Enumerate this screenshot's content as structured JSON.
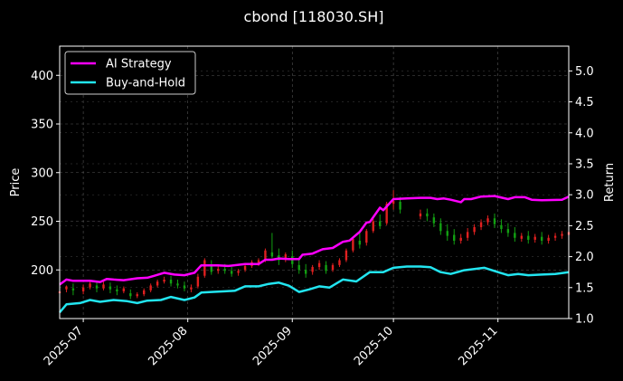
{
  "chart_data": {
    "type": "line",
    "title": "cbond [118030.SH]",
    "xlabel": "",
    "ylabel": "Price",
    "y2label": "Return",
    "x_ticks": [
      "2025-07",
      "2025-08",
      "2025-09",
      "2025-10",
      "2025-11"
    ],
    "y_ticks": [
      200,
      250,
      300,
      350,
      400
    ],
    "y2_ticks": [
      1.0,
      1.5,
      2.0,
      2.5,
      3.0,
      3.5,
      4.0,
      4.5,
      5.0
    ],
    "xlim": [
      "2025-06-24",
      "2025-11-22"
    ],
    "ylim": [
      150,
      430
    ],
    "y2lim": [
      1.0,
      5.4
    ],
    "grid": true,
    "legend_position": "upper-left",
    "colors": {
      "background": "#000000",
      "ai_strategy": "#ff00ff",
      "buy_and_hold": "#22e5f0",
      "up_candle": "#e02020",
      "down_candle": "#12a012",
      "grid": "#555555",
      "text": "#ffffff"
    },
    "series": [
      {
        "name": "AI Strategy",
        "axis": "right",
        "dates": [
          "2025-06-24",
          "2025-06-26",
          "2025-06-28",
          "2025-07-03",
          "2025-07-06",
          "2025-07-08",
          "2025-07-10",
          "2025-07-13",
          "2025-07-17",
          "2025-07-20",
          "2025-07-22",
          "2025-07-25",
          "2025-07-28",
          "2025-07-31",
          "2025-08-03",
          "2025-08-05",
          "2025-08-07",
          "2025-08-10",
          "2025-08-13",
          "2025-08-18",
          "2025-08-22",
          "2025-08-24",
          "2025-08-26",
          "2025-08-28",
          "2025-08-31",
          "2025-09-03",
          "2025-09-04",
          "2025-09-07",
          "2025-09-10",
          "2025-09-13",
          "2025-09-16",
          "2025-09-18",
          "2025-09-21",
          "2025-09-23",
          "2025-09-24",
          "2025-09-27",
          "2025-09-28",
          "2025-10-01",
          "2025-10-05",
          "2025-10-09",
          "2025-10-12",
          "2025-10-14",
          "2025-10-16",
          "2025-10-18",
          "2025-10-21",
          "2025-10-22",
          "2025-10-24",
          "2025-10-27",
          "2025-10-31",
          "2025-11-04",
          "2025-11-06",
          "2025-11-09",
          "2025-11-11",
          "2025-11-14",
          "2025-11-20",
          "2025-11-22"
        ],
        "values": [
          1.55,
          1.63,
          1.61,
          1.61,
          1.59,
          1.64,
          1.63,
          1.62,
          1.65,
          1.66,
          1.69,
          1.74,
          1.71,
          1.7,
          1.74,
          1.86,
          1.86,
          1.86,
          1.85,
          1.88,
          1.88,
          1.95,
          1.95,
          1.97,
          1.96,
          1.96,
          2.03,
          2.05,
          2.12,
          2.14,
          2.24,
          2.26,
          2.4,
          2.55,
          2.56,
          2.79,
          2.75,
          2.93,
          2.94,
          2.95,
          2.95,
          2.93,
          2.94,
          2.92,
          2.88,
          2.93,
          2.93,
          2.97,
          2.98,
          2.93,
          2.96,
          2.96,
          2.92,
          2.91,
          2.92,
          2.97
        ]
      },
      {
        "name": "Buy-and-Hold",
        "axis": "right",
        "dates": [
          "2025-06-24",
          "2025-06-26",
          "2025-06-30",
          "2025-07-03",
          "2025-07-06",
          "2025-07-10",
          "2025-07-14",
          "2025-07-17",
          "2025-07-20",
          "2025-07-24",
          "2025-07-27",
          "2025-07-31",
          "2025-08-03",
          "2025-08-05",
          "2025-08-08",
          "2025-08-12",
          "2025-08-15",
          "2025-08-18",
          "2025-08-22",
          "2025-08-25",
          "2025-08-28",
          "2025-08-31",
          "2025-09-03",
          "2025-09-06",
          "2025-09-09",
          "2025-09-12",
          "2025-09-16",
          "2025-09-20",
          "2025-09-24",
          "2025-09-28",
          "2025-10-01",
          "2025-10-05",
          "2025-10-09",
          "2025-10-12",
          "2025-10-15",
          "2025-10-18",
          "2025-10-22",
          "2025-10-25",
          "2025-10-28",
          "2025-11-01",
          "2025-11-04",
          "2025-11-07",
          "2025-11-10",
          "2025-11-14",
          "2025-11-18",
          "2025-11-22"
        ],
        "values": [
          1.1,
          1.23,
          1.25,
          1.3,
          1.27,
          1.3,
          1.28,
          1.25,
          1.29,
          1.3,
          1.35,
          1.3,
          1.34,
          1.42,
          1.43,
          1.44,
          1.45,
          1.52,
          1.52,
          1.56,
          1.58,
          1.53,
          1.43,
          1.47,
          1.52,
          1.5,
          1.63,
          1.6,
          1.75,
          1.75,
          1.82,
          1.84,
          1.84,
          1.83,
          1.75,
          1.72,
          1.78,
          1.8,
          1.82,
          1.75,
          1.7,
          1.72,
          1.7,
          1.71,
          1.72,
          1.75
        ]
      }
    ],
    "candles": [
      [
        "2025-06-24",
        176,
        182,
        178,
        174
      ],
      [
        "2025-06-26",
        180,
        184,
        183,
        177
      ],
      [
        "2025-06-28",
        181,
        186,
        179,
        174
      ],
      [
        "2025-07-01",
        178,
        185,
        182,
        175
      ],
      [
        "2025-07-03",
        182,
        190,
        186,
        180
      ],
      [
        "2025-07-05",
        184,
        189,
        181,
        177
      ],
      [
        "2025-07-07",
        181,
        188,
        185,
        179
      ],
      [
        "2025-07-09",
        183,
        187,
        180,
        176
      ],
      [
        "2025-07-11",
        180,
        184,
        178,
        174
      ],
      [
        "2025-07-13",
        178,
        183,
        181,
        176
      ],
      [
        "2025-07-15",
        176,
        180,
        173,
        170
      ],
      [
        "2025-07-17",
        173,
        177,
        175,
        171
      ],
      [
        "2025-07-19",
        175,
        181,
        179,
        173
      ],
      [
        "2025-07-21",
        179,
        186,
        184,
        177
      ],
      [
        "2025-07-23",
        184,
        190,
        188,
        182
      ],
      [
        "2025-07-25",
        188,
        193,
        190,
        186
      ],
      [
        "2025-07-27",
        190,
        194,
        186,
        183
      ],
      [
        "2025-07-29",
        186,
        190,
        184,
        181
      ],
      [
        "2025-07-31",
        184,
        188,
        181,
        178
      ],
      [
        "2025-08-02",
        180,
        185,
        182,
        177
      ],
      [
        "2025-08-04",
        183,
        196,
        193,
        181
      ],
      [
        "2025-08-06",
        194,
        212,
        210,
        192
      ],
      [
        "2025-08-08",
        205,
        210,
        198,
        195
      ],
      [
        "2025-08-10",
        199,
        204,
        201,
        196
      ],
      [
        "2025-08-12",
        201,
        206,
        199,
        196
      ],
      [
        "2025-08-14",
        199,
        203,
        196,
        193
      ],
      [
        "2025-08-16",
        197,
        201,
        199,
        194
      ],
      [
        "2025-08-18",
        200,
        206,
        204,
        198
      ],
      [
        "2025-08-20",
        204,
        210,
        208,
        202
      ],
      [
        "2025-08-22",
        206,
        212,
        210,
        204
      ],
      [
        "2025-08-24",
        210,
        222,
        220,
        208
      ],
      [
        "2025-08-26",
        218,
        238,
        214,
        212
      ],
      [
        "2025-08-28",
        215,
        222,
        210,
        205
      ],
      [
        "2025-08-30",
        212,
        218,
        216,
        208
      ],
      [
        "2025-09-01",
        214,
        220,
        206,
        202
      ],
      [
        "2025-09-03",
        205,
        210,
        200,
        196
      ],
      [
        "2025-09-05",
        200,
        206,
        196,
        192
      ],
      [
        "2025-09-07",
        198,
        205,
        203,
        195
      ],
      [
        "2025-09-09",
        203,
        210,
        207,
        200
      ],
      [
        "2025-09-11",
        205,
        209,
        199,
        196
      ],
      [
        "2025-09-13",
        200,
        207,
        205,
        198
      ],
      [
        "2025-09-15",
        205,
        212,
        210,
        203
      ],
      [
        "2025-09-17",
        210,
        222,
        220,
        208
      ],
      [
        "2025-09-19",
        220,
        234,
        232,
        218
      ],
      [
        "2025-09-21",
        230,
        238,
        226,
        222
      ],
      [
        "2025-09-23",
        228,
        242,
        240,
        225
      ],
      [
        "2025-09-25",
        240,
        255,
        250,
        238
      ],
      [
        "2025-09-27",
        250,
        257,
        245,
        242
      ],
      [
        "2025-09-29",
        248,
        270,
        268,
        246
      ],
      [
        "2025-10-01",
        268,
        282,
        271,
        262
      ],
      [
        "2025-10-03",
        270,
        275,
        262,
        258
      ],
      [
        "2025-10-09",
        255,
        262,
        258,
        252
      ],
      [
        "2025-10-11",
        258,
        263,
        255,
        250
      ],
      [
        "2025-10-13",
        254,
        258,
        248,
        244
      ],
      [
        "2025-10-15",
        248,
        253,
        240,
        236
      ],
      [
        "2025-10-17",
        240,
        247,
        235,
        230
      ],
      [
        "2025-10-19",
        236,
        242,
        230,
        226
      ],
      [
        "2025-10-21",
        230,
        237,
        233,
        227
      ],
      [
        "2025-10-23",
        233,
        243,
        239,
        230
      ],
      [
        "2025-10-25",
        239,
        247,
        244,
        236
      ],
      [
        "2025-10-27",
        244,
        252,
        249,
        241
      ],
      [
        "2025-10-29",
        249,
        256,
        253,
        246
      ],
      [
        "2025-10-31",
        253,
        258,
        247,
        243
      ],
      [
        "2025-11-02",
        246,
        252,
        242,
        238
      ],
      [
        "2025-11-04",
        242,
        248,
        238,
        234
      ],
      [
        "2025-11-06",
        238,
        244,
        233,
        229
      ],
      [
        "2025-11-08",
        232,
        238,
        235,
        229
      ],
      [
        "2025-11-10",
        235,
        240,
        231,
        227
      ],
      [
        "2025-11-12",
        231,
        237,
        234,
        228
      ],
      [
        "2025-11-14",
        234,
        239,
        230,
        226
      ],
      [
        "2025-11-16",
        230,
        236,
        233,
        227
      ],
      [
        "2025-11-18",
        233,
        238,
        235,
        230
      ],
      [
        "2025-11-20",
        235,
        240,
        237,
        232
      ],
      [
        "2025-11-22",
        236,
        241,
        239,
        234
      ]
    ]
  }
}
